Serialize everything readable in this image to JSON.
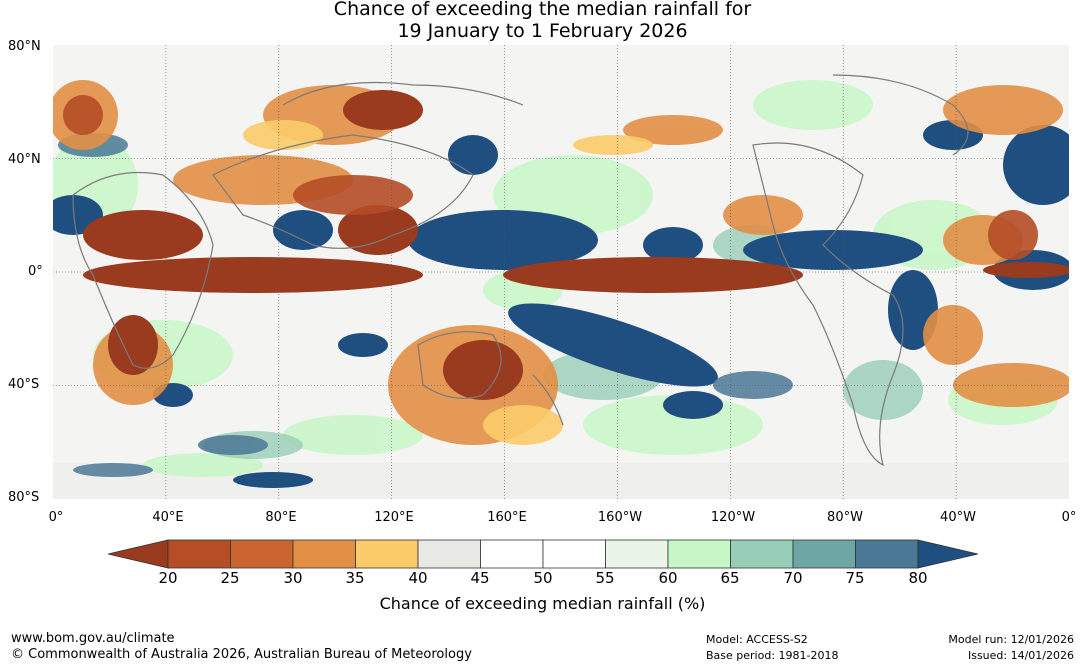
{
  "title_line1": "Chance of exceeding the median rainfall for",
  "title_line2": "19 January to 1 February 2026",
  "lat_labels": [
    "80°N",
    "40°N",
    "0°",
    "40°S",
    "80°S"
  ],
  "lon_labels": [
    "0°",
    "40°E",
    "80°E",
    "120°E",
    "160°E",
    "160°W",
    "120°W",
    "80°W",
    "40°W",
    "0°"
  ],
  "colorbar": {
    "ticks": [
      "20",
      "25",
      "30",
      "35",
      "40",
      "45",
      "50",
      "55",
      "60",
      "65",
      "70",
      "75",
      "80"
    ],
    "colors": [
      "#9a3a1f",
      "#b54d26",
      "#ca6530",
      "#e28f45",
      "#fbcb6a",
      "#e8e8e4",
      "#ffffff",
      "#ffffff",
      "#e9f5e7",
      "#c8f7c7",
      "#98ceb7",
      "#6ea6a5",
      "#4b7896",
      "#1f4e80"
    ],
    "label": "Chance of exceeding median rainfall (%)"
  },
  "footer": {
    "website": "www.bom.gov.au/climate",
    "copyright": "© Commonwealth of Australia 2026, Australian Bureau of Meteorology",
    "model": "Model: ACCESS-S2",
    "base_period": "Base period: 1981-2018",
    "model_run": "Model run: 12/01/2026",
    "issued": "Issued: 14/01/2026"
  }
}
